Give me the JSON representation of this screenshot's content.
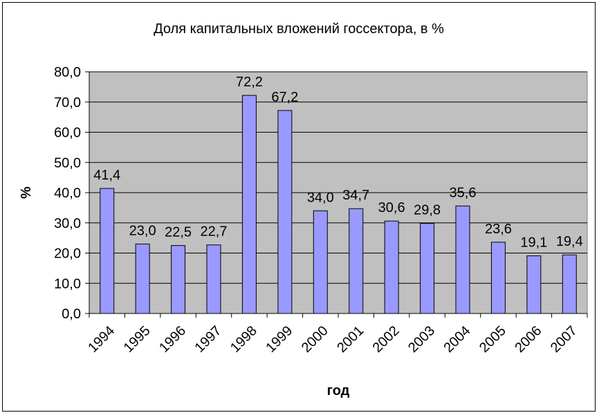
{
  "chart_data": {
    "type": "bar",
    "title": "Доля капитальных вложений госсектора, в %",
    "xlabel": "год",
    "ylabel": "%",
    "categories": [
      "1994",
      "1995",
      "1996",
      "1997",
      "1998",
      "1999",
      "2000",
      "2001",
      "2002",
      "2003",
      "2004",
      "2005",
      "2006",
      "2007"
    ],
    "values": [
      41.4,
      23.0,
      22.5,
      22.7,
      72.2,
      67.2,
      34.0,
      34.7,
      30.6,
      29.8,
      35.6,
      23.6,
      19.1,
      19.4
    ],
    "value_labels": [
      "41,4",
      "23,0",
      "22,5",
      "22,7",
      "72,2",
      "67,2",
      "34,0",
      "34,7",
      "30,6",
      "29,8",
      "35,6",
      "23,6",
      "19,1",
      "19,4"
    ],
    "yticks": [
      "0,0",
      "10,0",
      "20,0",
      "30,0",
      "40,0",
      "50,0",
      "60,0",
      "70,0",
      "80,0"
    ],
    "ylim": [
      0,
      80
    ],
    "grid": true,
    "plot_background": "#c0c0c0",
    "bar_color": "#9999ff"
  }
}
